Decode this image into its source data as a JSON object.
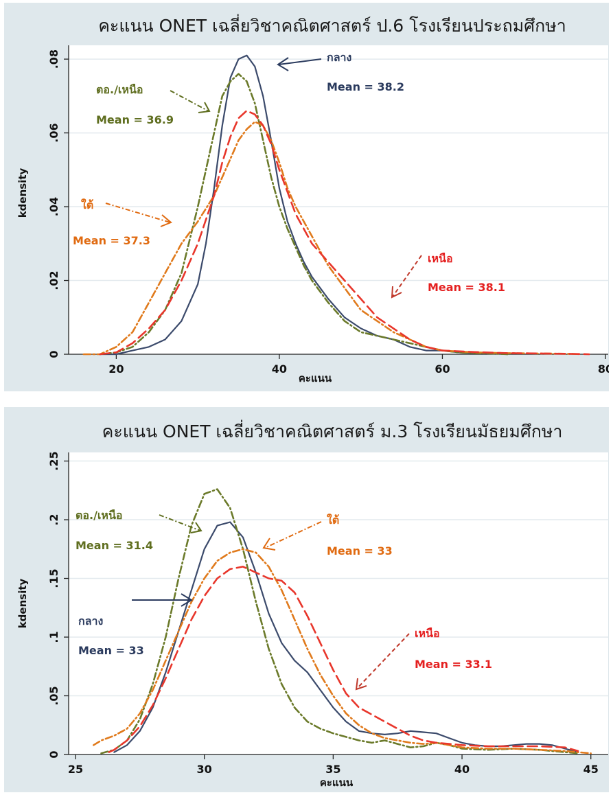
{
  "chart_data": [
    {
      "type": "line",
      "title": "คะแนน ONET เฉลี่ยวิชาคณิตศาสตร์ ป.6 โรงเรียนประถมศึกษา",
      "xlabel": "คะแนน",
      "ylabel": "kdensity",
      "xlim": [
        15,
        80
      ],
      "ylim": [
        0,
        0.083
      ],
      "xticks": [
        "20",
        "40",
        "60",
        "80"
      ],
      "yticks": [
        "0",
        ".02",
        ".04",
        ".06",
        ".08"
      ],
      "xtick_values": [
        20,
        40,
        60,
        80
      ],
      "ytick_values": [
        0,
        0.02,
        0.04,
        0.06,
        0.08
      ],
      "grid": true,
      "series": [
        {
          "name": "กลาง",
          "color": "#3b4a6b",
          "style": "solid",
          "x": [
            18,
            20,
            22,
            24,
            26,
            28,
            30,
            31,
            32,
            33,
            34,
            35,
            36,
            37,
            38,
            39,
            40,
            41,
            42,
            43,
            44,
            45,
            46,
            48,
            50,
            52,
            54,
            56,
            58,
            60,
            62,
            64,
            66,
            68
          ],
          "y": [
            0,
            0,
            0.001,
            0.002,
            0.004,
            0.009,
            0.019,
            0.03,
            0.045,
            0.062,
            0.075,
            0.08,
            0.081,
            0.078,
            0.07,
            0.058,
            0.045,
            0.036,
            0.03,
            0.025,
            0.021,
            0.018,
            0.015,
            0.01,
            0.007,
            0.005,
            0.004,
            0.002,
            0.001,
            0.001,
            0.0005,
            0.0003,
            0.0002,
            0
          ]
        },
        {
          "name": "ตอ./เหนือ",
          "color": "#6b7a2a",
          "style": "dashdot",
          "x": [
            18,
            20,
            22,
            24,
            26,
            28,
            30,
            31,
            32,
            33,
            34,
            35,
            36,
            37,
            38,
            39,
            40,
            41,
            42,
            43,
            44,
            46,
            48,
            50,
            52,
            54,
            56,
            58,
            60,
            62,
            64,
            66,
            68
          ],
          "y": [
            0,
            0.0005,
            0.002,
            0.006,
            0.012,
            0.022,
            0.04,
            0.05,
            0.06,
            0.07,
            0.074,
            0.076,
            0.074,
            0.068,
            0.058,
            0.048,
            0.04,
            0.034,
            0.029,
            0.024,
            0.02,
            0.014,
            0.009,
            0.006,
            0.005,
            0.004,
            0.003,
            0.002,
            0.001,
            0.0005,
            0.0003,
            0.0002,
            0
          ]
        },
        {
          "name": "ใต้",
          "color": "#e07a1c",
          "style": "dashdot",
          "x": [
            16,
            18,
            20,
            22,
            24,
            26,
            28,
            30,
            32,
            33,
            34,
            35,
            36,
            37,
            38,
            39,
            40,
            41,
            42,
            44,
            46,
            48,
            50,
            52,
            54,
            56,
            58,
            60,
            64,
            68,
            72,
            76,
            77
          ],
          "y": [
            0,
            0,
            0.002,
            0.006,
            0.014,
            0.022,
            0.03,
            0.036,
            0.043,
            0.048,
            0.053,
            0.058,
            0.061,
            0.063,
            0.062,
            0.058,
            0.052,
            0.045,
            0.04,
            0.032,
            0.024,
            0.018,
            0.012,
            0.009,
            0.006,
            0.004,
            0.002,
            0.001,
            0.0005,
            0.0003,
            0.0002,
            0.0001,
            0
          ]
        },
        {
          "name": "เหนือ",
          "color": "#e8362b",
          "style": "dash",
          "x": [
            18,
            20,
            22,
            24,
            26,
            28,
            30,
            32,
            33,
            34,
            35,
            36,
            37,
            38,
            39,
            40,
            41,
            42,
            44,
            46,
            48,
            50,
            52,
            54,
            56,
            58,
            60,
            64,
            68,
            72,
            76,
            78
          ],
          "y": [
            0,
            0.0005,
            0.003,
            0.007,
            0.012,
            0.02,
            0.03,
            0.043,
            0.052,
            0.059,
            0.064,
            0.066,
            0.065,
            0.062,
            0.057,
            0.05,
            0.044,
            0.038,
            0.03,
            0.025,
            0.02,
            0.015,
            0.01,
            0.007,
            0.004,
            0.002,
            0.001,
            0.0006,
            0.0003,
            0.0002,
            0.0001,
            0
          ]
        }
      ],
      "annotations": [
        {
          "label": "กลาง",
          "mean": "Mean = 38.2",
          "color": "#2b3b5e"
        },
        {
          "label": "ตอ./เหนือ",
          "mean": "Mean = 36.9",
          "color": "#5f6e1f"
        },
        {
          "label": "ใต้",
          "mean": "Mean = 37.3",
          "color": "#e06a10"
        },
        {
          "label": "เหนือ",
          "mean": "Mean = 38.1",
          "color": "#e41f1f"
        }
      ]
    },
    {
      "type": "line",
      "title": "คะแนน ONET เฉลี่ยวิชาคณิตศาสตร์ ม.3 โรงเรียนมัธยมศึกษา",
      "xlabel": "คะแนน",
      "ylabel": "kdensity",
      "xlim": [
        25,
        45.3
      ],
      "ylim": [
        0,
        0.255
      ],
      "xticks": [
        "25",
        "30",
        "35",
        "40",
        "45"
      ],
      "yticks": [
        "0",
        ".05",
        ".1",
        ".15",
        ".2",
        ".25"
      ],
      "xtick_values": [
        25,
        30,
        35,
        40,
        45
      ],
      "ytick_values": [
        0,
        0.05,
        0.1,
        0.15,
        0.2,
        0.25
      ],
      "grid": true,
      "series": [
        {
          "name": "กลาง",
          "color": "#3b4a6b",
          "style": "solid",
          "x": [
            26.5,
            27,
            27.5,
            28,
            28.5,
            29,
            29.5,
            30,
            30.5,
            31,
            31.5,
            32,
            32.5,
            33,
            33.5,
            34,
            34.5,
            35,
            35.5,
            36,
            36.5,
            37,
            37.5,
            38,
            38.5,
            39,
            39.5,
            40,
            40.5,
            41,
            41.5,
            42,
            42.5,
            43,
            43.5,
            44,
            44.5
          ],
          "y": [
            0.002,
            0.008,
            0.02,
            0.04,
            0.07,
            0.105,
            0.14,
            0.175,
            0.195,
            0.198,
            0.185,
            0.155,
            0.12,
            0.095,
            0.08,
            0.07,
            0.055,
            0.04,
            0.028,
            0.02,
            0.018,
            0.017,
            0.018,
            0.02,
            0.019,
            0.018,
            0.014,
            0.01,
            0.008,
            0.007,
            0.007,
            0.008,
            0.009,
            0.009,
            0.008,
            0.005,
            0.002
          ]
        },
        {
          "name": "ตอ./เหนือ",
          "color": "#6b7a2a",
          "style": "dashdot",
          "x": [
            26,
            26.5,
            27,
            27.5,
            28,
            28.5,
            29,
            29.5,
            30,
            30.5,
            31,
            31.5,
            32,
            32.5,
            33,
            33.5,
            34,
            34.5,
            35,
            35.5,
            36,
            36.5,
            37,
            37.5,
            38,
            38.5,
            39,
            39.5,
            40,
            41,
            42,
            43,
            44,
            44.5
          ],
          "y": [
            0.001,
            0.004,
            0.012,
            0.03,
            0.06,
            0.1,
            0.15,
            0.195,
            0.222,
            0.226,
            0.21,
            0.175,
            0.13,
            0.09,
            0.06,
            0.04,
            0.028,
            0.022,
            0.018,
            0.015,
            0.012,
            0.01,
            0.012,
            0.009,
            0.006,
            0.007,
            0.01,
            0.008,
            0.005,
            0.004,
            0.005,
            0.004,
            0.002,
            0.001
          ]
        },
        {
          "name": "ใต้",
          "color": "#e07a1c",
          "style": "dashdot",
          "x": [
            25.7,
            26,
            26.5,
            27,
            27.5,
            28,
            28.5,
            29,
            29.5,
            30,
            30.5,
            31,
            31.5,
            32,
            32.5,
            33,
            33.5,
            34,
            34.5,
            35,
            35.5,
            36,
            36.5,
            37,
            37.5,
            38,
            38.5,
            39,
            39.5,
            40,
            41,
            42,
            43,
            44,
            45
          ],
          "y": [
            0.008,
            0.012,
            0.016,
            0.022,
            0.035,
            0.055,
            0.08,
            0.105,
            0.13,
            0.15,
            0.165,
            0.172,
            0.175,
            0.172,
            0.16,
            0.14,
            0.115,
            0.09,
            0.068,
            0.05,
            0.035,
            0.025,
            0.018,
            0.014,
            0.012,
            0.01,
            0.009,
            0.01,
            0.008,
            0.006,
            0.005,
            0.005,
            0.004,
            0.003,
            0.001
          ]
        },
        {
          "name": "เหนือ",
          "color": "#e8362b",
          "style": "dash",
          "x": [
            26.3,
            26.5,
            27,
            27.5,
            28,
            28.5,
            29,
            29.5,
            30,
            30.5,
            31,
            31.5,
            32,
            32.5,
            33,
            33.5,
            34,
            34.5,
            35,
            35.5,
            36,
            36.5,
            37,
            37.5,
            38,
            38.5,
            39,
            39.5,
            40,
            41,
            42,
            43,
            44,
            44.5
          ],
          "y": [
            0.002,
            0.004,
            0.012,
            0.024,
            0.042,
            0.065,
            0.09,
            0.115,
            0.135,
            0.15,
            0.158,
            0.16,
            0.155,
            0.15,
            0.148,
            0.138,
            0.118,
            0.095,
            0.072,
            0.052,
            0.04,
            0.034,
            0.028,
            0.022,
            0.016,
            0.012,
            0.01,
            0.009,
            0.008,
            0.007,
            0.007,
            0.007,
            0.006,
            0.003
          ]
        }
      ],
      "annotations": [
        {
          "label": "ตอ./เหนือ",
          "mean": "Mean = 31.4",
          "color": "#5f6e1f"
        },
        {
          "label": "ใต้",
          "mean": "Mean = 33",
          "color": "#e06a10"
        },
        {
          "label": "กลาง",
          "mean": "Mean = 33",
          "color": "#2b3b5e"
        },
        {
          "label": "เหนือ",
          "mean": "Mean = 33.1",
          "color": "#e41f1f"
        }
      ]
    }
  ]
}
